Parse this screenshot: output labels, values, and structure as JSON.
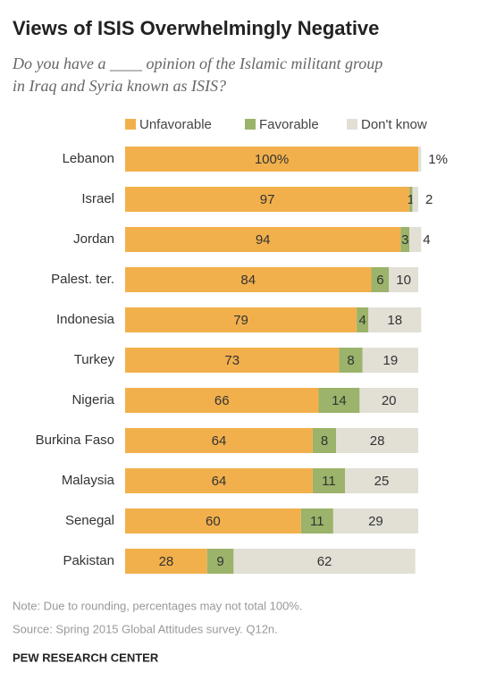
{
  "chart_data": {
    "type": "stacked-bar-horizontal",
    "title": "Views of ISIS Overwhelmingly Negative",
    "subtitle": [
      "Do you have a ____ opinion of the Islamic militant group",
      "in Iraq and Syria known as ISIS?"
    ],
    "categories": [
      "Lebanon",
      "Israel",
      "Jordan",
      "Palest. ter.",
      "Indonesia",
      "Turkey",
      "Nigeria",
      "Burkina Faso",
      "Malaysia",
      "Senegal",
      "Pakistan"
    ],
    "series": [
      {
        "name": "Unfavorable",
        "color": "#f2b04c",
        "values": [
          100,
          97,
          94,
          84,
          79,
          73,
          66,
          64,
          64,
          60,
          28
        ],
        "value_labels": [
          "100%",
          "97",
          "94",
          "84",
          "79",
          "73",
          "66",
          "64",
          "64",
          "60",
          "28"
        ]
      },
      {
        "name": "Favorable",
        "color": "#9bb36a",
        "values": [
          0,
          1,
          3,
          6,
          4,
          8,
          14,
          8,
          11,
          11,
          9
        ],
        "value_labels": [
          null,
          "1",
          "3",
          "6",
          "4",
          "8",
          "14",
          "8",
          "11",
          "11",
          "9"
        ]
      },
      {
        "name": "Don't know",
        "color": "#e2dfd5",
        "values": [
          1,
          2,
          4,
          10,
          18,
          19,
          20,
          28,
          25,
          29,
          62
        ],
        "value_labels": [
          "1%",
          "2",
          "4",
          "10",
          "18",
          "19",
          "20",
          "28",
          "25",
          "29",
          "62"
        ]
      }
    ],
    "notes": [
      "Note: Due to rounding, percentages may not total 100%.",
      "Source: Spring 2015 Global Attitudes survey. Q12n."
    ],
    "source": "PEW RESEARCH CENTER"
  }
}
